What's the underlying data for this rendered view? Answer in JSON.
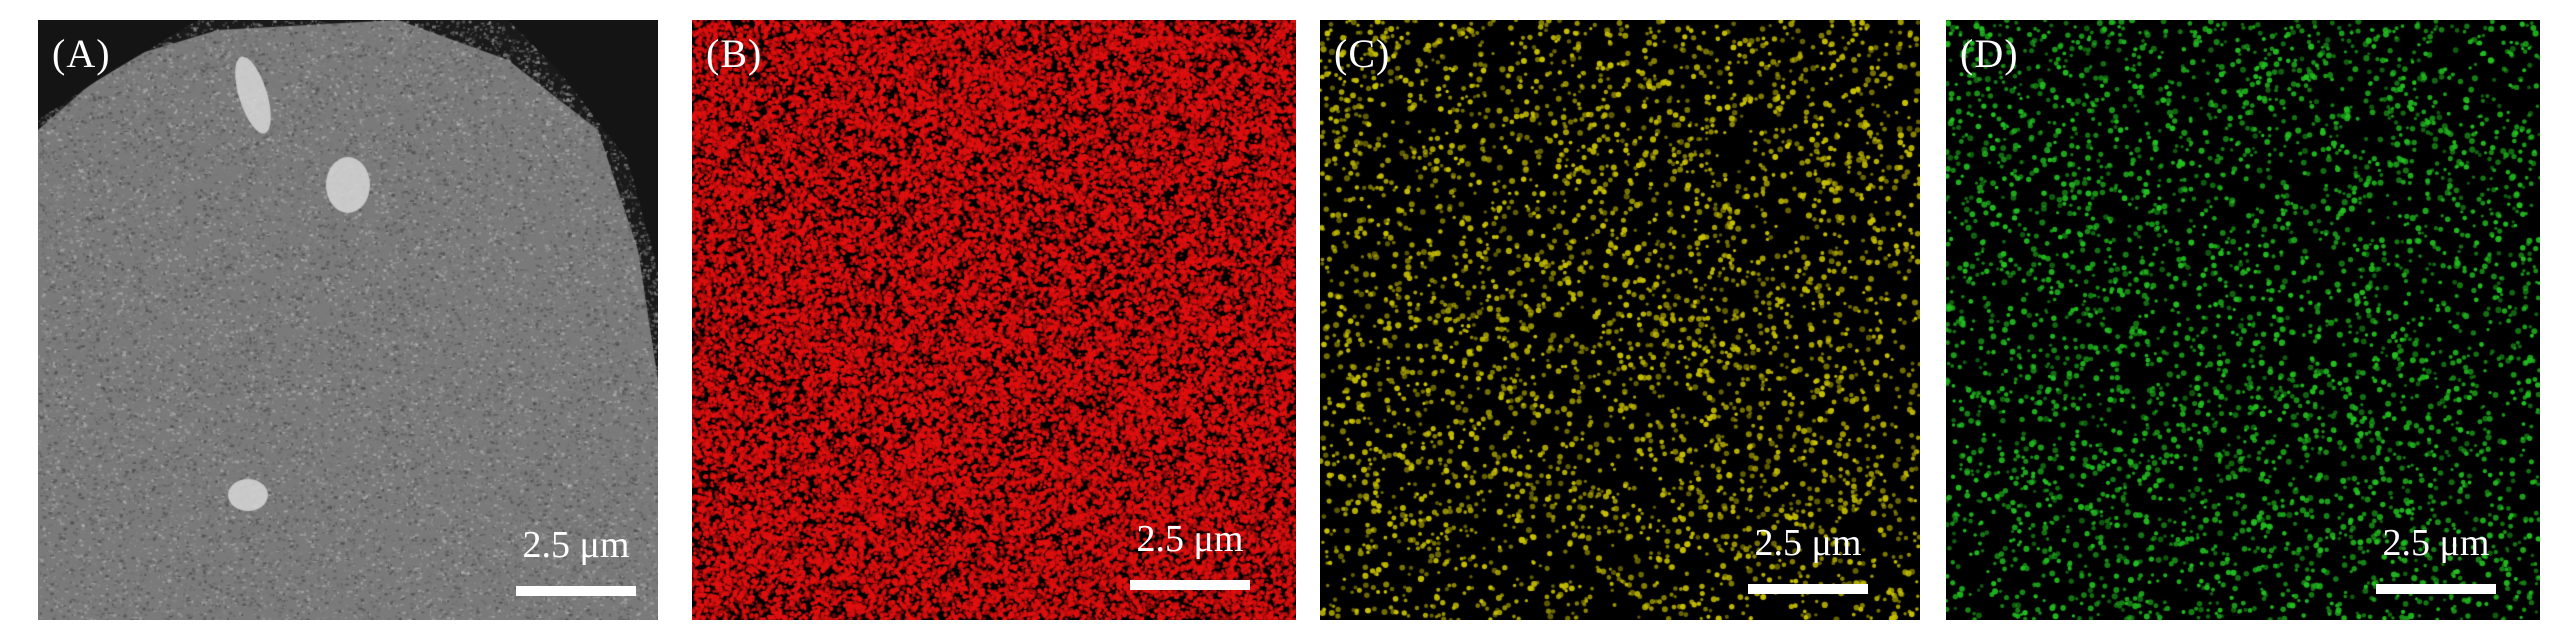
{
  "panels": [
    {
      "id": "panel-a",
      "label": "(A)",
      "label_color": "#ffffff",
      "scale_text": "2.5 μm",
      "kind": "sem",
      "dot_color": "#8c8c8c"
    },
    {
      "id": "panel-b",
      "label": "(B)",
      "label_color": "#ffffff",
      "scale_text": "2.5 μm",
      "kind": "map-dense",
      "dot_color": "#e01010"
    },
    {
      "id": "panel-c",
      "label": "(C)",
      "label_color": "#ffffff",
      "scale_text": "2.5 μm",
      "kind": "map-sparse",
      "dot_color": "#c8c000"
    },
    {
      "id": "panel-d",
      "label": "(D)",
      "label_color": "#ffffff",
      "scale_text": "2.5 μm",
      "kind": "map-sparse",
      "dot_color": "#22c020"
    }
  ]
}
